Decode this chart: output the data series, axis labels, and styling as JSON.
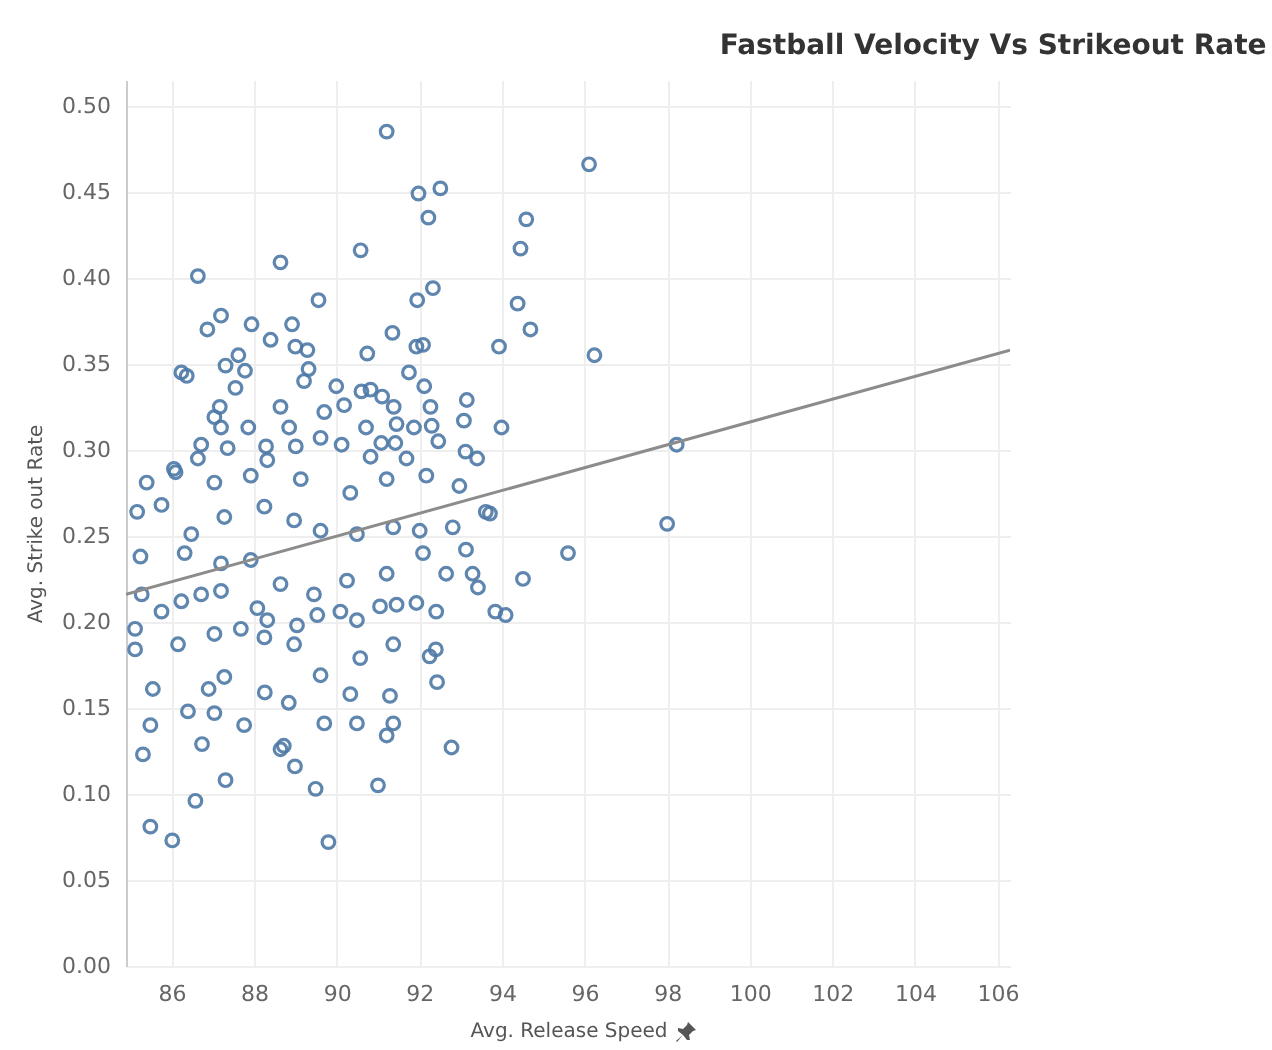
{
  "chart_data": {
    "type": "scatter",
    "title": "Fastball Velocity Vs Strikeout Rate",
    "xlabel": "Avg. Release Speed",
    "ylabel": "Avg. Strike out Rate",
    "xlim": [
      84.9,
      106.3
    ],
    "xticks": [
      86,
      88,
      90,
      92,
      94,
      96,
      98,
      100,
      102,
      104,
      106
    ],
    "ylim": [
      0,
      0.515
    ],
    "yticks": [
      {
        "value": 0,
        "label": "0.00"
      },
      {
        "value": 0.05,
        "label": "0.05"
      },
      {
        "value": 0.1,
        "label": "0.10"
      },
      {
        "value": 0.15,
        "label": "0.15"
      },
      {
        "value": 0.2,
        "label": "0.20"
      },
      {
        "value": 0.25,
        "label": "0.25"
      },
      {
        "value": 0.3,
        "label": "0.30"
      },
      {
        "value": 0.35,
        "label": "0.35"
      },
      {
        "value": 0.4,
        "label": "0.40"
      },
      {
        "value": 0.45,
        "label": "0.45"
      },
      {
        "value": 0.5,
        "label": "0.50"
      }
    ],
    "grid": true,
    "series": [
      {
        "marker": "circle",
        "color": "#4e79a7",
        "x": [
          91.21,
          96.11,
          91.98,
          92.51,
          92.22,
          94.59,
          94.45,
          90.58,
          88.64,
          86.64,
          89.56,
          91.95,
          92.33,
          94.38,
          94.69,
          96.24,
          93.93,
          87.2,
          86.87,
          87.94,
          88.92,
          88.4,
          89.0,
          89.29,
          91.35,
          90.74,
          91.93,
          92.09,
          87.62,
          87.31,
          87.78,
          86.24,
          86.37,
          89.32,
          89.21,
          91.75,
          87.55,
          89.99,
          90.6,
          90.82,
          92.12,
          87.17,
          88.64,
          89.7,
          90.18,
          91.1,
          91.38,
          92.27,
          93.15,
          87.04,
          87.2,
          87.86,
          88.85,
          90.71,
          91.45,
          91.87,
          92.3,
          93.08,
          93.99,
          86.72,
          87.36,
          88.29,
          89.01,
          89.61,
          90.12,
          91.08,
          91.42,
          92.46,
          93.12,
          98.23,
          86.06,
          86.64,
          88.32,
          90.82,
          91.69,
          93.4,
          98.0,
          95.6,
          94.51,
          93.84,
          94.09,
          93.71,
          93.42,
          85.17,
          85.28,
          85.12,
          85.12,
          85.76,
          85.25,
          86.16,
          85.55,
          85.49,
          85.31,
          85.49,
          86.02,
          86.58,
          87.31,
          86.74,
          86.4,
          86.9,
          87.04,
          87.76,
          87.28,
          88.64,
          88.99,
          89.49,
          89.8,
          91.0,
          92.78,
          91.21,
          90.49,
          91.37,
          89.7,
          88.84,
          88.26,
          90.33,
          91.29,
          92.43,
          92.4,
          92.25,
          91.37,
          90.57,
          89.61,
          88.97,
          88.25,
          87.68,
          87.04,
          86.24,
          85.76,
          86.72,
          87.2,
          88.08,
          88.32,
          89.04,
          89.53,
          90.09,
          90.49,
          91.05,
          91.45,
          91.93,
          92.41,
          92.65,
          93.29,
          93.13,
          92.09,
          91.21,
          90.25,
          89.45,
          88.64,
          87.92,
          87.2,
          86.32,
          86.48,
          87.28,
          88.25,
          88.97,
          89.61,
          90.49,
          91.37,
          92.01,
          92.81,
          93.61,
          90.33,
          91.21,
          92.17,
          92.97,
          89.13,
          87.92,
          87.04,
          86.1,
          85.4,
          88.72
        ],
        "values": [
          0.485,
          0.466,
          0.449,
          0.452,
          0.435,
          0.434,
          0.417,
          0.416,
          0.409,
          0.401,
          0.387,
          0.387,
          0.394,
          0.385,
          0.37,
          0.355,
          0.36,
          0.378,
          0.37,
          0.373,
          0.373,
          0.364,
          0.36,
          0.358,
          0.368,
          0.356,
          0.36,
          0.361,
          0.355,
          0.349,
          0.346,
          0.345,
          0.343,
          0.347,
          0.34,
          0.345,
          0.336,
          0.337,
          0.334,
          0.335,
          0.337,
          0.325,
          0.325,
          0.322,
          0.326,
          0.331,
          0.325,
          0.325,
          0.329,
          0.319,
          0.313,
          0.313,
          0.313,
          0.313,
          0.315,
          0.313,
          0.314,
          0.317,
          0.313,
          0.303,
          0.301,
          0.302,
          0.302,
          0.307,
          0.303,
          0.304,
          0.304,
          0.305,
          0.299,
          0.303,
          0.289,
          0.295,
          0.294,
          0.296,
          0.295,
          0.295,
          0.257,
          0.24,
          0.225,
          0.206,
          0.204,
          0.263,
          0.22,
          0.264,
          0.216,
          0.196,
          0.184,
          0.268,
          0.238,
          0.187,
          0.161,
          0.14,
          0.123,
          0.081,
          0.073,
          0.096,
          0.108,
          0.129,
          0.148,
          0.161,
          0.147,
          0.14,
          0.168,
          0.126,
          0.116,
          0.103,
          0.072,
          0.105,
          0.127,
          0.134,
          0.141,
          0.141,
          0.141,
          0.153,
          0.159,
          0.158,
          0.157,
          0.165,
          0.184,
          0.18,
          0.187,
          0.179,
          0.169,
          0.187,
          0.191,
          0.196,
          0.193,
          0.212,
          0.206,
          0.216,
          0.218,
          0.208,
          0.201,
          0.198,
          0.204,
          0.206,
          0.201,
          0.209,
          0.21,
          0.211,
          0.206,
          0.228,
          0.228,
          0.242,
          0.24,
          0.228,
          0.224,
          0.216,
          0.222,
          0.236,
          0.234,
          0.24,
          0.251,
          0.261,
          0.267,
          0.259,
          0.253,
          0.251,
          0.255,
          0.253,
          0.255,
          0.264,
          0.275,
          0.283,
          0.285,
          0.279,
          0.283,
          0.285,
          0.281,
          0.287,
          0.281,
          0.128
        ]
      },
      {
        "type": "line",
        "color": "#8c8c8c",
        "x": [
          84.9,
          106.3
        ],
        "values": [
          0.216,
          0.358
        ]
      }
    ]
  }
}
